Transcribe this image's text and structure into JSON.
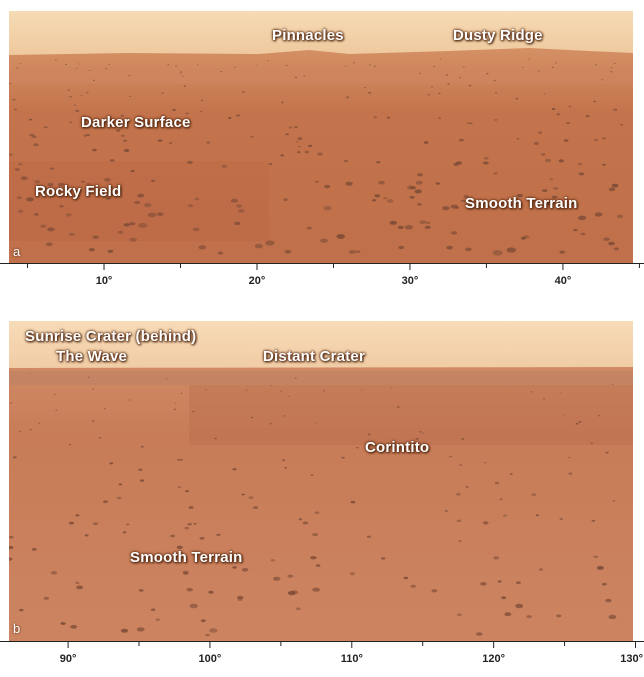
{
  "panel_a": {
    "letter": "a",
    "labels": {
      "pinnacles": "Pinnacles",
      "dusty_ridge": "Dusty Ridge",
      "darker_surface": "Darker Surface",
      "rocky_field": "Rocky Field",
      "smooth_terrain": "Smooth Terrain"
    },
    "scale": {
      "ticks": [
        "10°",
        "20°",
        "30°",
        "40°"
      ],
      "tick_values": [
        10,
        20,
        30,
        40
      ],
      "range": [
        3.2,
        45.3
      ]
    }
  },
  "panel_b": {
    "letter": "b",
    "labels": {
      "sunrise_crater": "Sunrise Crater (behind)",
      "the_wave": "The Wave",
      "distant_crater": "Distant Crater",
      "corintito": "Corintito",
      "smooth_terrain": "Smooth Terrain"
    },
    "scale": {
      "ticks": [
        "90°",
        "100°",
        "110°",
        "120°",
        "130°"
      ],
      "tick_values": [
        90,
        100,
        110,
        120,
        130
      ],
      "range": [
        85.2,
        130.6
      ]
    }
  },
  "colors": {
    "sky": "#f3d2a8",
    "ground": "#c57a52",
    "ground_dark": "#b56442",
    "rock": "#7a4a36"
  }
}
